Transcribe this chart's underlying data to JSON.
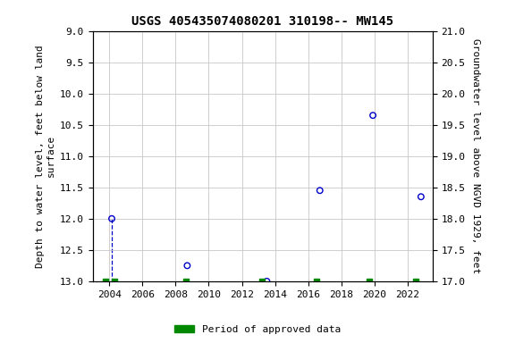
{
  "title": "USGS 405435074080201 310198-- MW145",
  "ylabel_left": "Depth to water level, feet below land\nsurface",
  "ylabel_right": "Groundwater level above NGVD 1929, feet",
  "xlim": [
    2003.0,
    2023.5
  ],
  "ylim_left": [
    9.0,
    13.0
  ],
  "ylim_right": [
    21.0,
    17.0
  ],
  "yticks_left": [
    9.0,
    9.5,
    10.0,
    10.5,
    11.0,
    11.5,
    12.0,
    12.5,
    13.0
  ],
  "yticks_right": [
    21.0,
    20.5,
    20.0,
    19.5,
    19.0,
    18.5,
    18.0,
    17.5,
    17.0
  ],
  "ytick_labels_right": [
    "21.0",
    "20.5",
    "20.0",
    "19.5",
    "19.0",
    "18.5",
    "18.0",
    "17.5",
    "17.0"
  ],
  "xticks": [
    2004,
    2006,
    2008,
    2010,
    2012,
    2014,
    2016,
    2018,
    2020,
    2022
  ],
  "scatter_x": [
    2004.15,
    2008.7,
    2013.5,
    2016.7,
    2019.9,
    2022.8
  ],
  "scatter_y": [
    12.0,
    12.75,
    13.0,
    11.55,
    10.35,
    11.65
  ],
  "dashed_line_x": [
    2004.15,
    2004.15
  ],
  "dashed_line_y": [
    12.0,
    13.0
  ],
  "green_markers_x": [
    2003.75,
    2004.3,
    2008.65,
    2013.2,
    2016.5,
    2019.7,
    2022.5
  ],
  "green_markers_y": [
    13.0,
    13.0,
    13.0,
    13.0,
    13.0,
    13.0,
    13.0
  ],
  "scatter_color": "#0000cc",
  "dashed_color": "#0000cc",
  "green_color": "#008800",
  "background_color": "#ffffff",
  "grid_color": "#c8c8c8",
  "title_fontsize": 10,
  "tick_fontsize": 8,
  "label_fontsize": 8,
  "legend_label": "Period of approved data"
}
